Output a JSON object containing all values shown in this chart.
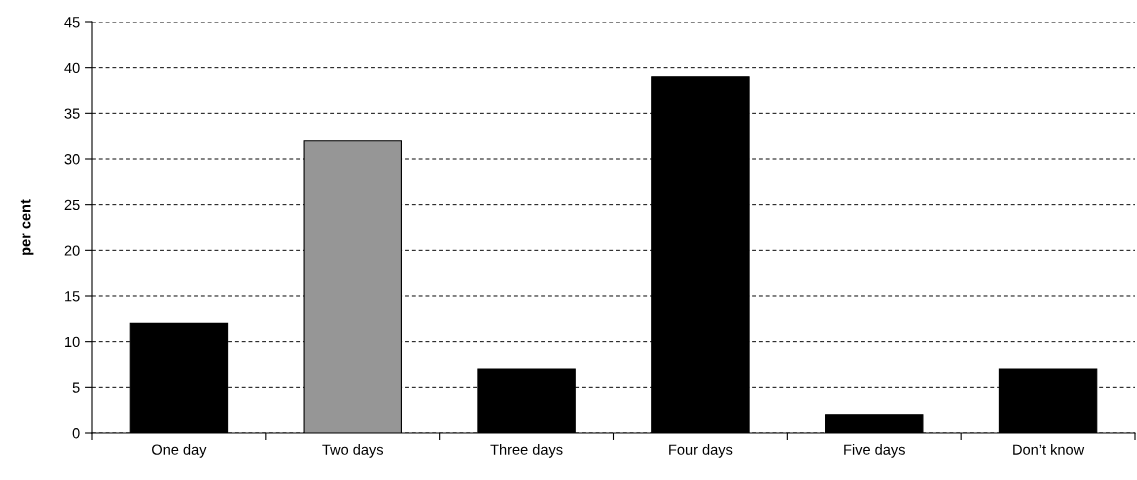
{
  "chart_data": {
    "type": "bar",
    "ylabel": "per cent",
    "categories": [
      "One day",
      "Two days",
      "Three days",
      "Four days",
      "Five days",
      "Don’t know"
    ],
    "values": [
      12,
      32,
      7,
      39,
      2,
      7
    ],
    "colors": [
      "#000000",
      "#969696",
      "#000000",
      "#000000",
      "#000000",
      "#000000"
    ],
    "ylim": [
      0,
      45
    ],
    "yticks": [
      0,
      5,
      10,
      15,
      20,
      25,
      30,
      35,
      40,
      45
    ],
    "grid": "y",
    "line_style": "dashed"
  }
}
